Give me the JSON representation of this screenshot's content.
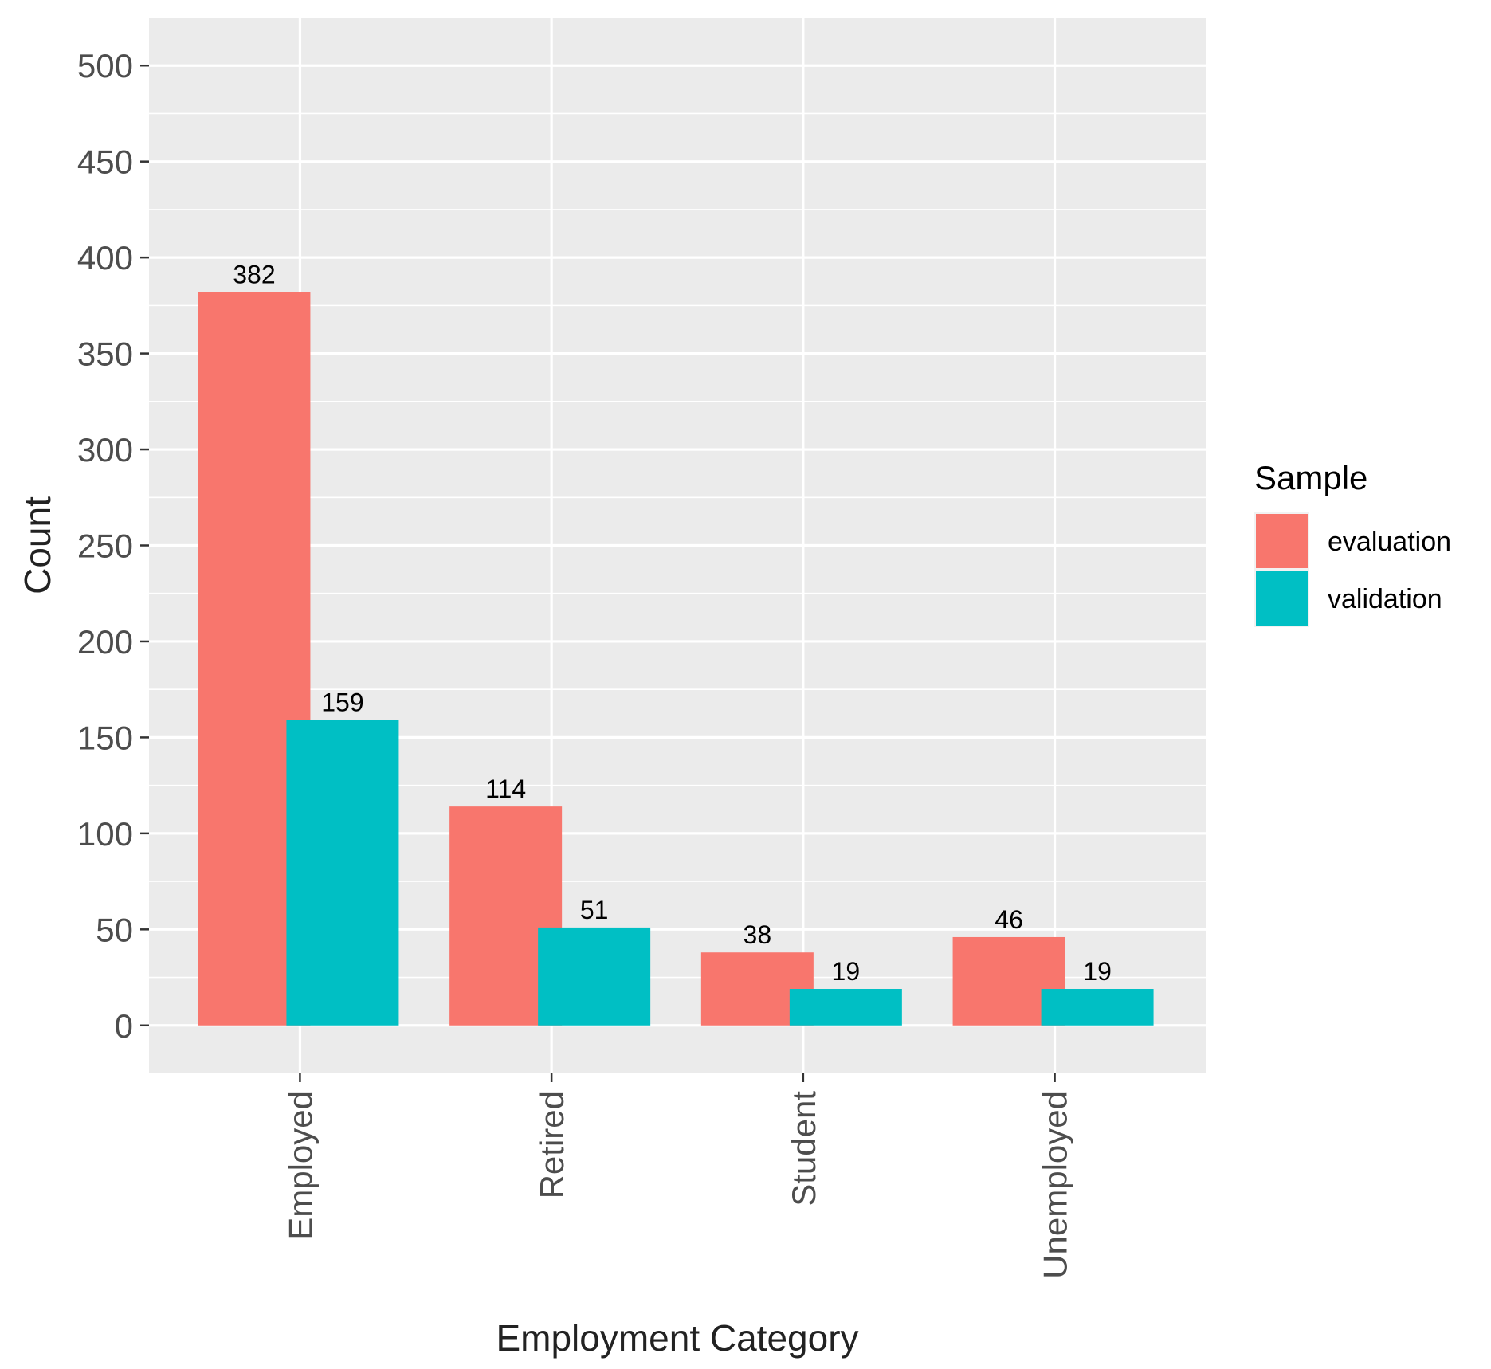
{
  "chart_data": {
    "type": "bar",
    "xlabel": "Employment Category",
    "ylabel": "Count",
    "categories": [
      "Employed",
      "Retired",
      "Student",
      "Unemployed"
    ],
    "series": [
      {
        "name": "evaluation",
        "values": [
          382,
          114,
          38,
          46
        ],
        "color": "#F8766D"
      },
      {
        "name": "validation",
        "values": [
          159,
          51,
          19,
          19
        ],
        "color": "#00BFC4"
      }
    ],
    "ylim": [
      -25,
      525
    ],
    "yticks": [
      0,
      50,
      100,
      150,
      200,
      250,
      300,
      350,
      400,
      450,
      500
    ],
    "ytick_labels": [
      "0",
      "50",
      "100",
      "150",
      "200",
      "250",
      "300",
      "350",
      "400",
      "450",
      "500"
    ],
    "grid": true,
    "panel_background": "#EBEBEB",
    "bar_position": "dodge-overlap",
    "xtick_rotation": -90,
    "legend": {
      "title": "Sample",
      "placement": "right"
    }
  }
}
